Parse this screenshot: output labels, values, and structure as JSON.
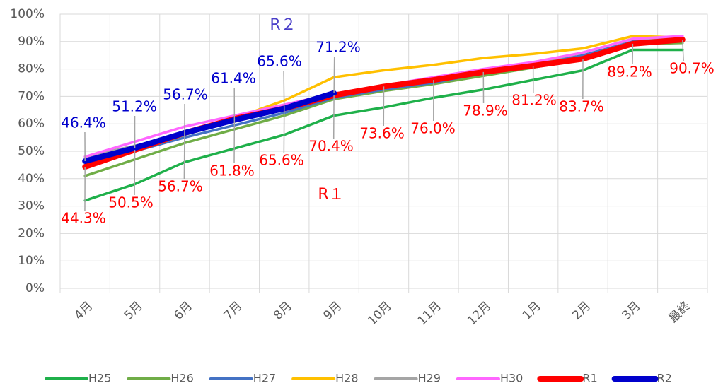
{
  "chart_data": {
    "type": "line",
    "categories": [
      "4月",
      "5月",
      "6月",
      "7月",
      "8月",
      "9月",
      "10月",
      "11月",
      "12月",
      "1月",
      "2月",
      "3月",
      "最終"
    ],
    "ylim": [
      0,
      100
    ],
    "yticks": [
      {
        "value": 0,
        "label": "0%"
      },
      {
        "value": 10,
        "label": "10%"
      },
      {
        "value": 20,
        "label": "20%"
      },
      {
        "value": 30,
        "label": "30%"
      },
      {
        "value": 40,
        "label": "40%"
      },
      {
        "value": 50,
        "label": "50%"
      },
      {
        "value": 60,
        "label": "60%"
      },
      {
        "value": 70,
        "label": "70%"
      },
      {
        "value": 80,
        "label": "80%"
      },
      {
        "value": 90,
        "label": "90%"
      },
      {
        "value": 100,
        "label": "100%"
      }
    ],
    "grid": true,
    "legend": "bottom",
    "annotations": [
      {
        "text": "R２",
        "color": "#4a3fc9"
      },
      {
        "text": "R１",
        "color": "#ff0000"
      }
    ],
    "series": [
      {
        "name": "H25",
        "color": "#1fb04a",
        "values": [
          32,
          38,
          46,
          51,
          56,
          63,
          66,
          69.5,
          72.5,
          76,
          79.5,
          87,
          87
        ]
      },
      {
        "name": "H26",
        "color": "#70ad47",
        "values": [
          41,
          47,
          53,
          58,
          63,
          69,
          72,
          74.5,
          77.5,
          80.5,
          84,
          89,
          89.5
        ]
      },
      {
        "name": "H27",
        "color": "#4472c4",
        "values": [
          45,
          50,
          55,
          59.5,
          64,
          69.5,
          72.5,
          75,
          78.5,
          81.5,
          85,
          90,
          90.5
        ]
      },
      {
        "name": "H28",
        "color": "#ffc000",
        "values": [
          44,
          50,
          56,
          62,
          68.5,
          77,
          79.5,
          81.5,
          84,
          85.5,
          87.5,
          92,
          91.5
        ]
      },
      {
        "name": "H29",
        "color": "#a5a5a5",
        "values": [
          48,
          52,
          56,
          61,
          65.5,
          70,
          73,
          75.5,
          79,
          82,
          86,
          91,
          91.5
        ]
      },
      {
        "name": "H30",
        "color": "#ff66ff",
        "values": [
          48,
          53.5,
          59,
          63,
          67,
          71,
          74,
          77,
          80,
          82.5,
          86,
          91,
          92
        ]
      },
      {
        "name": "R1",
        "color": "#ff0000",
        "values": [
          44.3,
          50.5,
          56.7,
          61.8,
          65.6,
          70.4,
          73.6,
          76.0,
          78.9,
          81.2,
          83.7,
          89.2,
          90.7
        ],
        "value_labels": [
          "44.3%",
          "50.5%",
          "56.7%",
          "61.8%",
          "65.6%",
          "70.4%",
          "73.6%",
          "76.0%",
          "78.9%",
          "81.2%",
          "83.7%",
          "89.2%",
          "90.7%"
        ]
      },
      {
        "name": "R2",
        "color": "#0000cc",
        "values": [
          46.4,
          51.2,
          56.7,
          61.4,
          65.6,
          71.2,
          null,
          null,
          null,
          null,
          null,
          null,
          null
        ],
        "value_labels": [
          "46.4%",
          "51.2%",
          "56.7%",
          "61.4%",
          "65.6%",
          "71.2%",
          null,
          null,
          null,
          null,
          null,
          null,
          null
        ]
      }
    ]
  }
}
